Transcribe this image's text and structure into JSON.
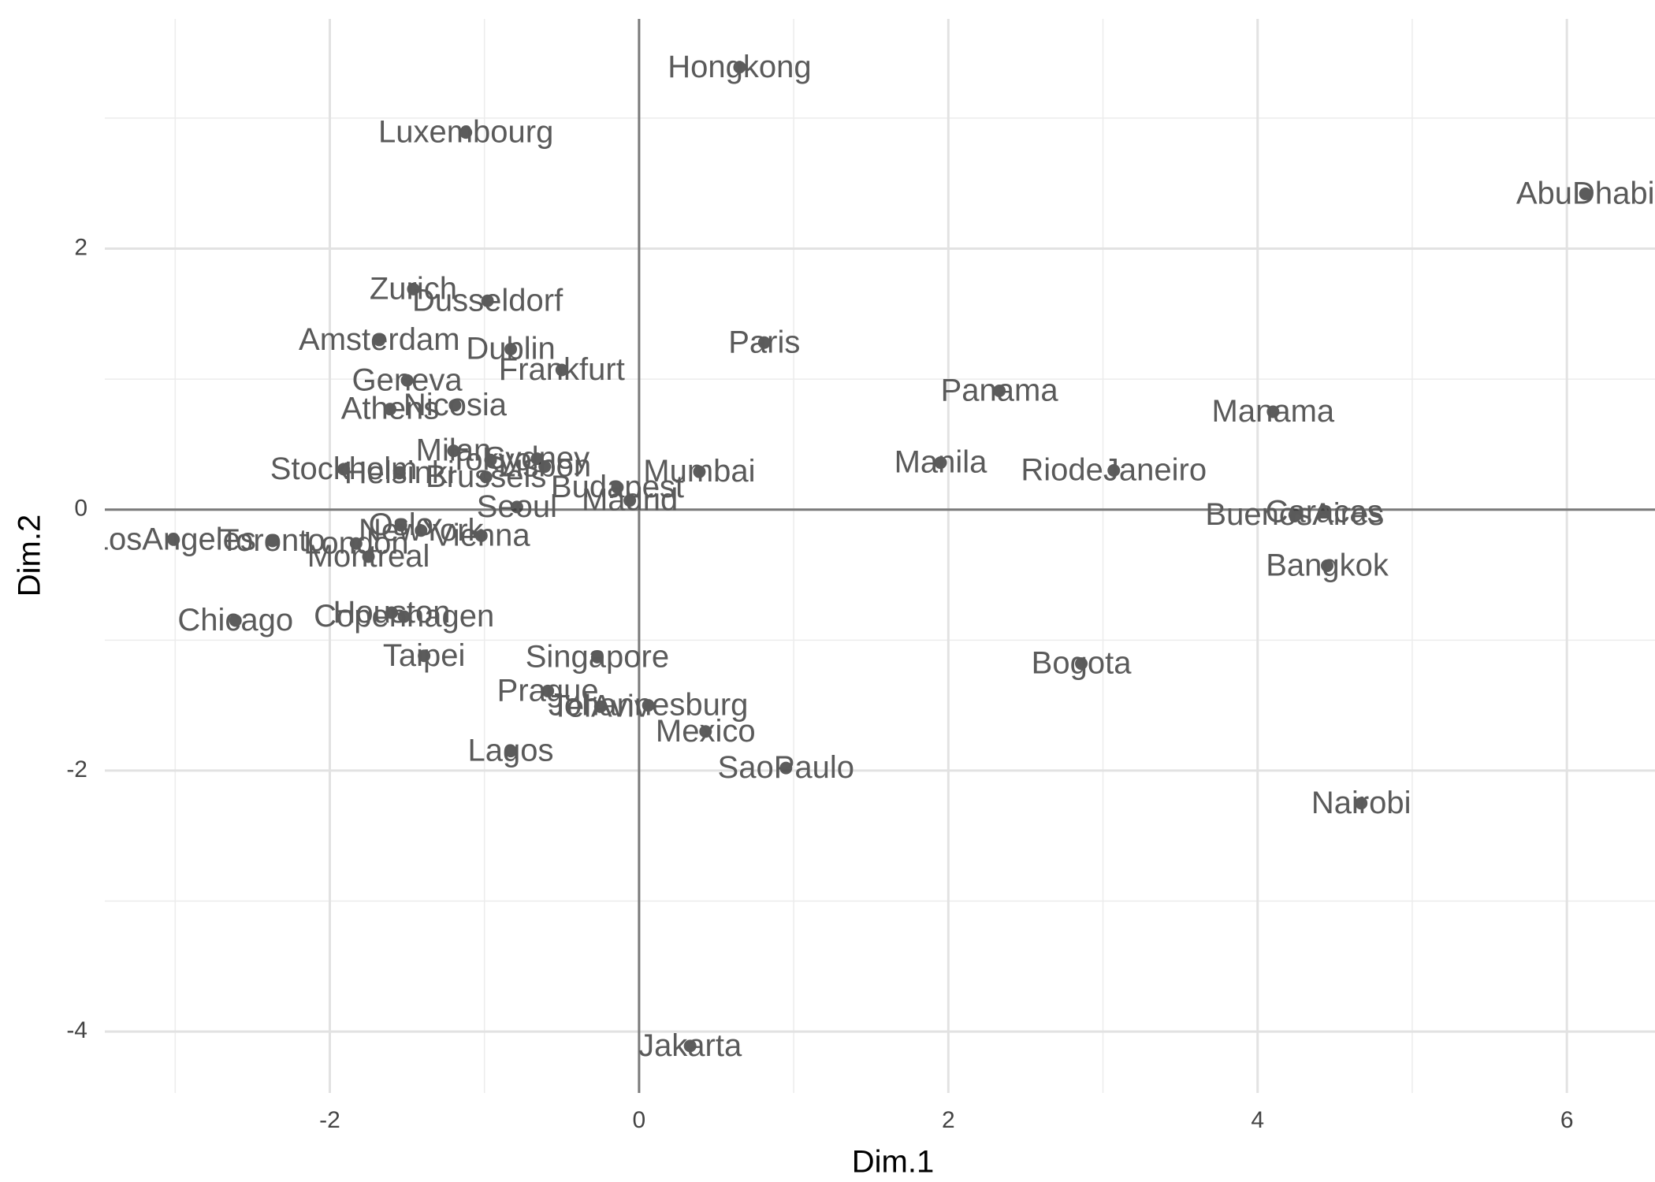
{
  "chart_data": {
    "type": "scatter",
    "x_label": "Dim.1",
    "y_label": "Dim.2",
    "labels": [
      "Hongkong",
      "Luxembourg",
      "AbuDhabi",
      "Zurich",
      "Dusseldorf",
      "Amsterdam",
      "Dublin",
      "Paris",
      "Frankfurt",
      "Geneva",
      "Nicosia",
      "Athens",
      "Panama",
      "Manama",
      "Milan",
      "Sydney",
      "Tokyo",
      "Lisbon",
      "Stockholm",
      "Helsinki",
      "Brussels",
      "Mumbai",
      "Manila",
      "RiodeJaneiro",
      "Budapest",
      "Madrid",
      "Seoul",
      "Caracas",
      "BuenosAires",
      "Bangkok",
      "Oslo",
      "NewYork",
      "Vienna",
      "LosAngeles",
      "Toronto",
      "London",
      "Montreal",
      "Chicago",
      "Houston",
      "Copenhagen",
      "Taipei",
      "Singapore",
      "Bogota",
      "Prague",
      "TelAviv",
      "Johannesburg",
      "Mexico",
      "Lagos",
      "SaoPaulo",
      "Nairobi",
      "Jakarta"
    ],
    "x": [
      0.65,
      -1.12,
      6.12,
      -1.46,
      -0.98,
      -1.68,
      -0.83,
      0.81,
      -0.5,
      -1.5,
      -1.19,
      -1.61,
      2.33,
      4.1,
      -1.2,
      -0.66,
      -0.96,
      -0.61,
      -1.91,
      -1.55,
      -0.99,
      0.39,
      1.95,
      3.07,
      -0.14,
      -0.06,
      -0.79,
      4.43,
      4.24,
      4.45,
      -1.54,
      -1.41,
      -1.02,
      -3.01,
      -2.37,
      -1.83,
      -1.75,
      -2.61,
      -1.6,
      -1.52,
      -1.39,
      -0.27,
      2.86,
      -0.59,
      -0.25,
      0.06,
      0.43,
      -0.83,
      0.95,
      4.67,
      0.33
    ],
    "y": [
      3.39,
      2.89,
      2.42,
      1.69,
      1.6,
      1.3,
      1.23,
      1.28,
      1.07,
      0.99,
      0.8,
      0.77,
      0.91,
      0.75,
      0.45,
      0.39,
      0.38,
      0.33,
      0.31,
      0.28,
      0.25,
      0.29,
      0.36,
      0.3,
      0.17,
      0.07,
      0.02,
      -0.02,
      -0.04,
      -0.43,
      -0.12,
      -0.16,
      -0.2,
      -0.23,
      -0.24,
      -0.26,
      -0.36,
      -0.85,
      -0.79,
      -0.82,
      -1.12,
      -1.13,
      -1.18,
      -1.39,
      -1.51,
      -1.5,
      -1.7,
      -1.85,
      -1.98,
      -2.25,
      -4.11
    ],
    "xlim": [
      -3.455,
      6.57
    ],
    "ylim": [
      -4.47,
      3.76
    ],
    "xticks": [
      -2,
      0,
      2,
      4,
      6
    ],
    "yticks": [
      -4,
      -2,
      0,
      2
    ],
    "grid": true,
    "color": "#333333",
    "label_color": "#5a5a5a"
  }
}
